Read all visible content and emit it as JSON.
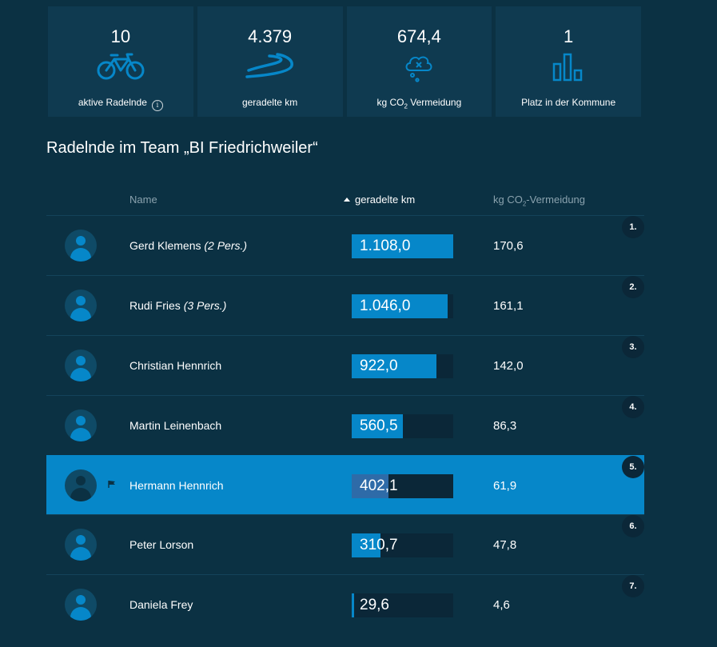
{
  "stats": [
    {
      "value": "10",
      "label": "aktive Radelnde",
      "icon": "bicycle-icon"
    },
    {
      "value": "4.379",
      "label": "geradelte km",
      "icon": "road-icon"
    },
    {
      "value": "674,4",
      "label_pre": "kg CO",
      "label_sub": "2",
      "label_post": " Vermeidung",
      "icon": "cloud-co2-icon"
    },
    {
      "value": "1",
      "label": "Platz in der Kommune",
      "icon": "bar-chart-icon"
    }
  ],
  "info_symbol": "i",
  "section_title": "Radelnde im Team „BI Friedrichweiler“",
  "table": {
    "headers": {
      "name": "Name",
      "km": "geradelte km",
      "co2_pre": "kg CO",
      "co2_sub": "2",
      "co2_post": "-Vermeidung"
    },
    "rows": [
      {
        "rank": "1.",
        "name": "Gerd Klemens",
        "note": "(2 Pers.)",
        "km": "1.108,0",
        "km_value": 1108.0,
        "co2": "170,6",
        "highlight": false
      },
      {
        "rank": "2.",
        "name": "Rudi Fries",
        "note": "(3 Pers.)",
        "km": "1.046,0",
        "km_value": 1046.0,
        "co2": "161,1",
        "highlight": false
      },
      {
        "rank": "3.",
        "name": "Christian Hennrich",
        "note": "",
        "km": "922,0",
        "km_value": 922.0,
        "co2": "142,0",
        "highlight": false
      },
      {
        "rank": "4.",
        "name": "Martin Leinenbach",
        "note": "",
        "km": "560,5",
        "km_value": 560.5,
        "co2": "86,3",
        "highlight": false
      },
      {
        "rank": "5.",
        "name": "Hermann Hennrich",
        "note": "",
        "km": "402,1",
        "km_value": 402.1,
        "co2": "61,9",
        "highlight": true
      },
      {
        "rank": "6.",
        "name": "Peter Lorson",
        "note": "",
        "km": "310,7",
        "km_value": 310.7,
        "co2": "47,8",
        "highlight": false
      },
      {
        "rank": "7.",
        "name": "Daniela Frey",
        "note": "",
        "km": "29,6",
        "km_value": 29.6,
        "co2": "4,6",
        "highlight": false
      }
    ]
  },
  "colors": {
    "accent": "#0687c9",
    "background": "#0b3143",
    "card": "#0f3a50"
  }
}
